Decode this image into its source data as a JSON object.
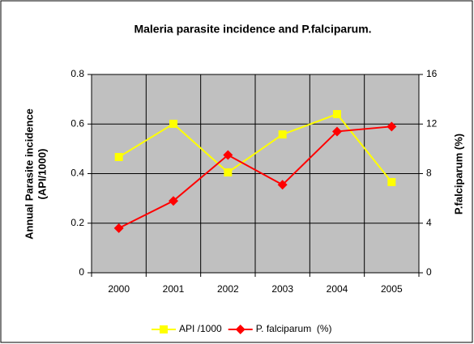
{
  "chart_data": {
    "type": "line",
    "title": "Maleria parasite incidence and P.falciparum.",
    "ylabel": [
      "Annual Parasite incidence",
      "(API/1000)"
    ],
    "y2label": "P.falciparum  (%)",
    "categories": [
      "2000",
      "2001",
      "2002",
      "2003",
      "2004",
      "2005"
    ],
    "series": [
      {
        "name": "API /1000",
        "color": "#ffff00",
        "marker": "square",
        "values": [
          0.467,
          0.601,
          0.405,
          0.558,
          0.64,
          0.366
        ]
      },
      {
        "name": "P. falciparum  (%)",
        "color": "#ff0000",
        "marker": "diamond",
        "axis": "y2",
        "values": [
          3.6,
          5.8,
          9.5,
          7.1,
          11.4,
          11.8
        ]
      }
    ],
    "ylim": [
      0,
      0.8
    ],
    "yticks": [
      0,
      0.2,
      0.4,
      0.6,
      0.8
    ],
    "y2lim": [
      0,
      16
    ],
    "y2ticks": [
      0,
      4,
      8,
      12,
      16
    ],
    "grid": true,
    "legend": "bottom"
  }
}
